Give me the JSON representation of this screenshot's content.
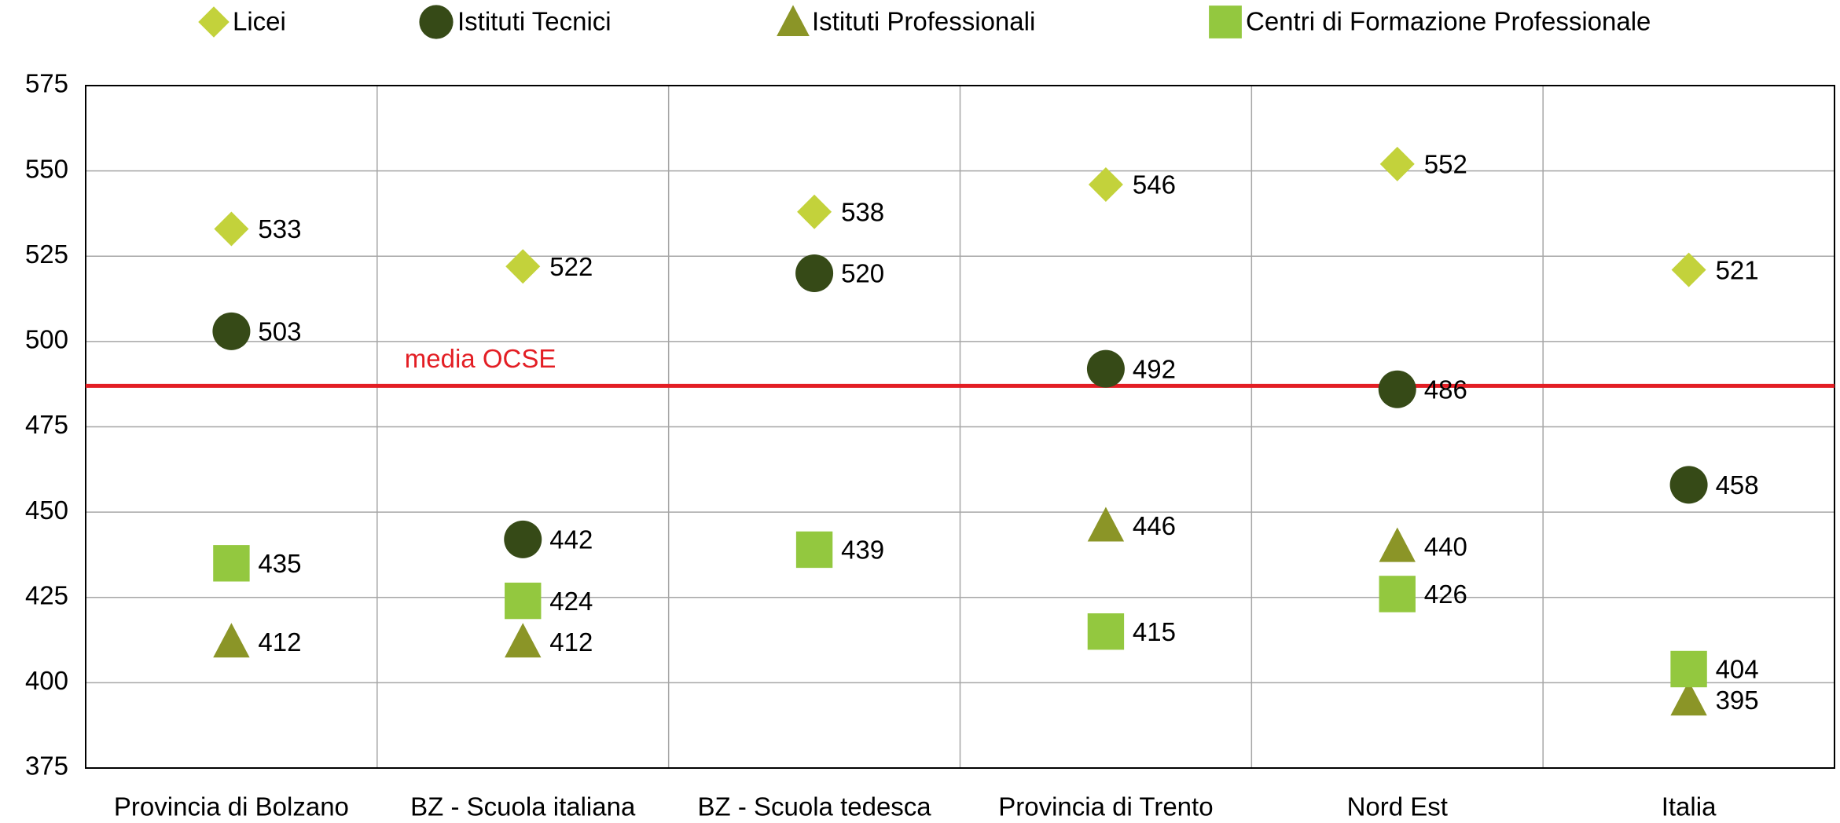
{
  "chart_data": {
    "type": "dot",
    "categories": [
      "Provincia di Bolzano",
      "BZ - Scuola italiana",
      "BZ - Scuola tedesca",
      "Provincia di Trento",
      "Nord Est",
      "Italia"
    ],
    "series": [
      {
        "name": "Licei",
        "color": "#c3d23b",
        "marker": "diamond",
        "values": [
          533,
          522,
          538,
          546,
          552,
          521
        ]
      },
      {
        "name": "Istituti Tecnici",
        "color": "#364a17",
        "marker": "circle",
        "values": [
          503,
          442,
          520,
          492,
          486,
          458
        ]
      },
      {
        "name": "Istituti Professionali",
        "color": "#8b9527",
        "marker": "triangle",
        "values": [
          412,
          412,
          null,
          446,
          440,
          395
        ]
      },
      {
        "name": "Centri di Formazione Professionale",
        "color": "#93c83f",
        "marker": "square",
        "values": [
          435,
          424,
          439,
          415,
          426,
          404
        ]
      }
    ],
    "ylim": [
      375,
      575
    ],
    "yticks": [
      375,
      400,
      425,
      450,
      475,
      500,
      525,
      550,
      575
    ],
    "grid": true,
    "legend": "top",
    "reference_line": {
      "value": 487,
      "label": "media OCSE",
      "color": "#e31e24"
    }
  }
}
